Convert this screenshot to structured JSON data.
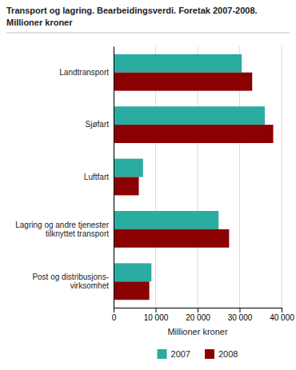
{
  "chart_data": {
    "type": "bar",
    "orientation": "horizontal",
    "title": "Transport og lagring. Bearbeidingsverdi. Foretak 2007-2008.",
    "subtitle": "Millioner kroner",
    "categories": [
      "Post og distribusjons-\nvirksomhet",
      "Lagring og andre tjenester\ntilknyttet transport",
      "Luftfart",
      "Sjøfart",
      "Landtransport"
    ],
    "series": [
      {
        "name": "2007",
        "color": "#2aaca0",
        "values": [
          9000,
          25000,
          7000,
          36000,
          30500
        ]
      },
      {
        "name": "2008",
        "color": "#8b0000",
        "values": [
          8500,
          27500,
          6000,
          38000,
          33000
        ]
      }
    ],
    "x_label": "Millioner kroner",
    "xlim": [
      0,
      40000
    ],
    "xticks": [
      0,
      {
        "value": 10000,
        "label": "10 000"
      },
      {
        "value": 20000,
        "label": "20 000"
      },
      {
        "value": 30000,
        "label": "30 000"
      },
      {
        "value": 40000,
        "label": "40 000"
      }
    ],
    "grid": true,
    "legend": "bottom"
  }
}
